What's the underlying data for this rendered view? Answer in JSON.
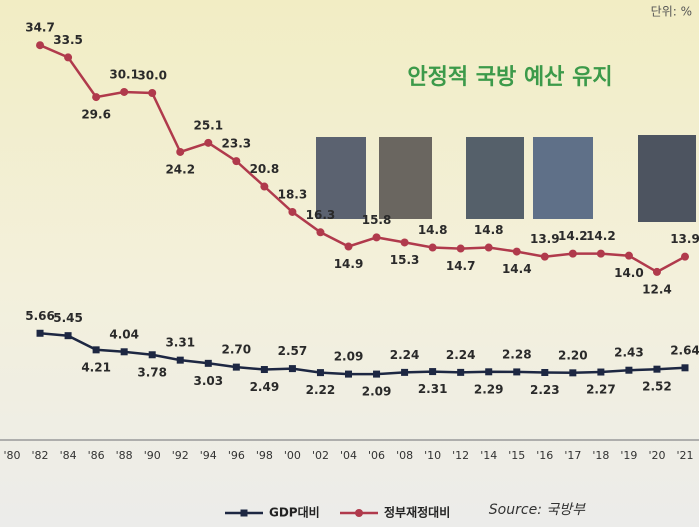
{
  "chart_data": {
    "type": "line",
    "title": "안정적 국방 예산 유지",
    "unit_note": "단위: %",
    "source": "Source: 국방부",
    "categories": [
      "'80",
      "'82",
      "'84",
      "'86",
      "'88",
      "'90",
      "'92",
      "'94",
      "'96",
      "'98",
      "'00",
      "'02",
      "'04",
      "'06",
      "'08",
      "'10",
      "'12",
      "'14",
      "'15",
      "'16",
      "'17",
      "'18",
      "'19",
      "'20",
      "'21"
    ],
    "ylim": [
      0,
      36
    ],
    "y2lim": [
      0,
      32
    ],
    "series": [
      {
        "name": "정부재정대비",
        "color": "#b03a4c",
        "values": [
          null,
          34.7,
          33.5,
          29.6,
          30.1,
          30.0,
          24.2,
          25.1,
          23.3,
          20.8,
          18.3,
          16.3,
          14.9,
          15.8,
          15.3,
          14.8,
          14.7,
          14.8,
          14.4,
          13.9,
          14.2,
          14.2,
          14.0,
          12.4,
          13.9
        ],
        "value_labels": [
          null,
          "34.7",
          "33.5",
          "29.6",
          "30.1",
          "30.0",
          "24.2",
          "25.1",
          "23.3",
          "20.8",
          "18.3",
          "16.3",
          "14.9",
          "15.8",
          "15.3",
          "14.8",
          "14.7",
          "14.8",
          "14.4",
          "13.9",
          "14.2",
          "14.2",
          "14.0",
          "12.4",
          "13.9"
        ]
      },
      {
        "name": "GDP대비",
        "color": "#1d2742",
        "axis": "y2",
        "values": [
          null,
          5.66,
          5.45,
          4.21,
          4.04,
          3.78,
          3.31,
          3.03,
          2.7,
          2.49,
          2.57,
          2.22,
          2.09,
          2.09,
          2.24,
          2.31,
          2.24,
          2.29,
          2.28,
          2.23,
          2.2,
          2.27,
          2.43,
          2.52,
          2.64
        ],
        "value_labels": [
          null,
          "5.66",
          "5.45",
          "4.21",
          "4.04",
          "3.78",
          "3.31",
          "3.03",
          "2.70",
          "2.49",
          "2.57",
          "2.22",
          "2.09",
          "2.09",
          "2.24",
          "2.31",
          "2.24",
          "2.29",
          "2.28",
          "2.23",
          "2.20",
          "2.27",
          "2.43",
          "2.52",
          "2.64"
        ]
      }
    ]
  }
}
